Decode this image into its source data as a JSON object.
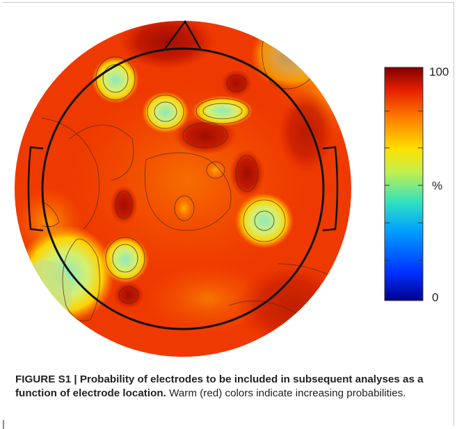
{
  "figure": {
    "colorbar": {
      "max_label": "100",
      "mid_label": "%",
      "min_label": "0",
      "colors": [
        "#00008f",
        "#0050ff",
        "#00c8ff",
        "#7fff7f",
        "#ffff00",
        "#ff8000",
        "#ff2000",
        "#800000"
      ]
    },
    "caption": {
      "label": "FIGURE S1 | Probability of electrodes to be included in subsequent analyses as a function of electrode location.",
      "text": " Warm (red) colors indicate increasing probabilities."
    }
  }
}
